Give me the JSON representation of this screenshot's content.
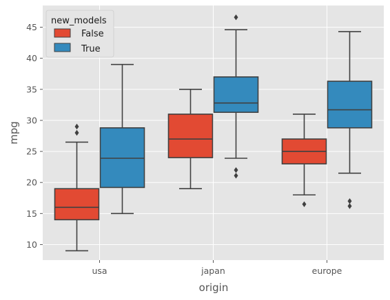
{
  "chart_data": {
    "type": "box",
    "xlabel": "origin",
    "ylabel": "mpg",
    "categories": [
      "usa",
      "japan",
      "europe"
    ],
    "ylim": [
      7.5,
      48.5
    ],
    "yticks": [
      10,
      15,
      20,
      25,
      30,
      35,
      40,
      45
    ],
    "grid": true,
    "legend": {
      "title": "new_models",
      "placement": "top-left",
      "entries": [
        {
          "label": "False",
          "color": "#E24A33"
        },
        {
          "label": "True",
          "color": "#348ABD"
        }
      ]
    },
    "series": [
      {
        "name": "False",
        "color": "#E24A33",
        "boxes": [
          {
            "category": "usa",
            "q1": 14,
            "median": 16,
            "q3": 19,
            "whisker_low": 9,
            "whisker_high": 26.5,
            "outliers": [
              28,
              29
            ]
          },
          {
            "category": "japan",
            "q1": 24,
            "median": 27,
            "q3": 31,
            "whisker_low": 19,
            "whisker_high": 35,
            "outliers": []
          },
          {
            "category": "europe",
            "q1": 23,
            "median": 25,
            "q3": 27,
            "whisker_low": 18,
            "whisker_high": 31,
            "outliers": [
              16.5
            ]
          }
        ]
      },
      {
        "name": "True",
        "color": "#348ABD",
        "boxes": [
          {
            "category": "usa",
            "q1": 19.2,
            "median": 23.9,
            "q3": 28.8,
            "whisker_low": 15,
            "whisker_high": 39,
            "outliers": []
          },
          {
            "category": "japan",
            "q1": 31.3,
            "median": 32.8,
            "q3": 37,
            "whisker_low": 23.9,
            "whisker_high": 44.6,
            "outliers": [
              46.6,
              22,
              21.1
            ]
          },
          {
            "category": "europe",
            "q1": 28.8,
            "median": 31.7,
            "q3": 36.3,
            "whisker_low": 21.5,
            "whisker_high": 44.3,
            "outliers": [
              17,
              16.2
            ]
          }
        ]
      }
    ]
  }
}
